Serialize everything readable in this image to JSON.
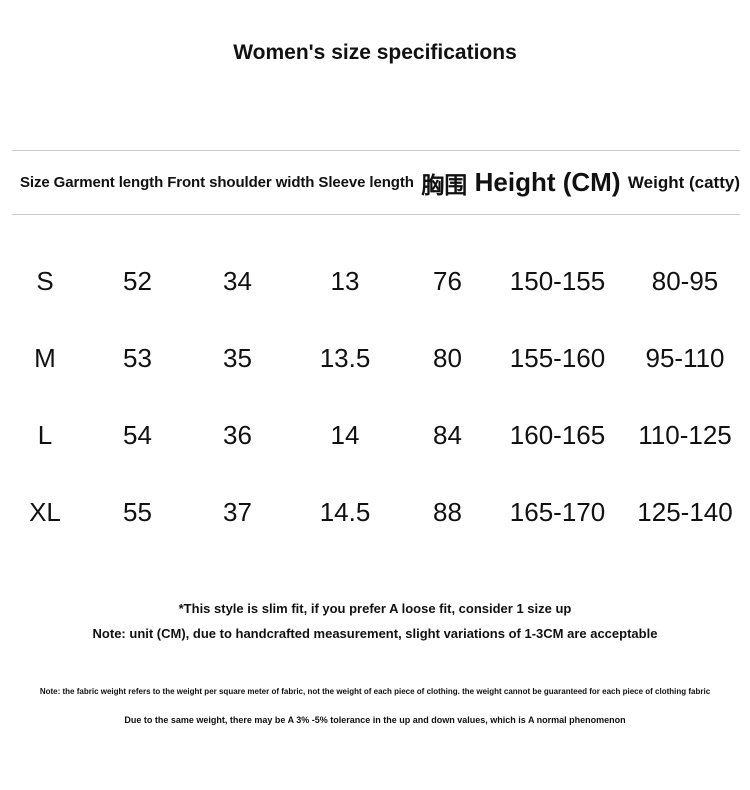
{
  "title": "Women's size specifications",
  "table": {
    "header": {
      "english_columns": "Size Garment length Front shoulder width Sleeve length",
      "chest_cn": "胸围",
      "height": "Height (CM)",
      "weight": "Weight (catty)"
    },
    "rows": [
      [
        "S",
        "52",
        "34",
        "13",
        "76",
        "150-155",
        "80-95"
      ],
      [
        "M",
        "53",
        "35",
        "13.5",
        "80",
        "155-160",
        "95-110"
      ],
      [
        "L",
        "54",
        "36",
        "14",
        "84",
        "160-165",
        "110-125"
      ],
      [
        "XL",
        "55",
        "37",
        "14.5",
        "88",
        "165-170",
        "125-140"
      ]
    ]
  },
  "notes": {
    "fit": "*This style is slim fit, if you prefer A loose fit, consider 1 size up",
    "unit": "Note: unit (CM), due to handcrafted measurement, slight variations of 1-3CM are acceptable",
    "fabric_weight": "Note: the fabric weight refers to the weight per square meter of fabric, not the weight of each piece of clothing. the weight cannot be guaranteed for each piece of clothing fabric",
    "tolerance": "Due to the same weight, there may be A 3% -5% tolerance in the up and down values, which is A normal phenomenon"
  },
  "colors": {
    "text": "#111111",
    "divider": "#cccccc",
    "background": "#ffffff"
  }
}
